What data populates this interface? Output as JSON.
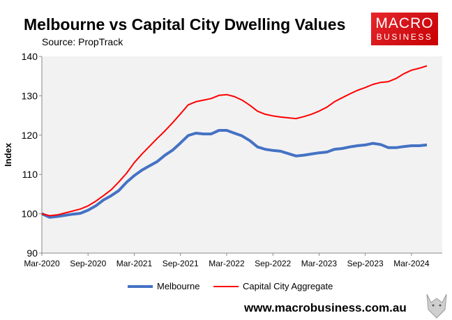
{
  "header": {
    "title": "Melbourne vs Capital City Dwelling Values",
    "subtitle": "Source: PropTrack"
  },
  "logo": {
    "line1": "MACRO",
    "line2": "BUSINESS",
    "color": "#d9161b"
  },
  "footer": {
    "url": "www.macrobusiness.com.au"
  },
  "chart_data": {
    "type": "line",
    "title": "Melbourne vs Capital City Dwelling Values",
    "subtitle": "Source: PropTrack",
    "ylabel": "Index",
    "xlabel": "",
    "ylim": [
      90,
      140
    ],
    "yticks": [
      90,
      100,
      110,
      120,
      130,
      140
    ],
    "xtick_labels": [
      "Mar-2020",
      "Sep-2020",
      "Mar-2021",
      "Sep-2021",
      "Mar-2022",
      "Sep-2022",
      "Mar-2023",
      "Sep-2023",
      "Mar-2024"
    ],
    "grid": false,
    "legend": "bottom",
    "plot_background": "#f2f2f2",
    "x": [
      "2020-03",
      "2020-04",
      "2020-05",
      "2020-06",
      "2020-07",
      "2020-08",
      "2020-09",
      "2020-10",
      "2020-11",
      "2020-12",
      "2021-01",
      "2021-02",
      "2021-03",
      "2021-04",
      "2021-05",
      "2021-06",
      "2021-07",
      "2021-08",
      "2021-09",
      "2021-10",
      "2021-11",
      "2021-12",
      "2022-01",
      "2022-02",
      "2022-03",
      "2022-04",
      "2022-05",
      "2022-06",
      "2022-07",
      "2022-08",
      "2022-09",
      "2022-10",
      "2022-11",
      "2022-12",
      "2023-01",
      "2023-02",
      "2023-03",
      "2023-04",
      "2023-05",
      "2023-06",
      "2023-07",
      "2023-08",
      "2023-09",
      "2023-10",
      "2023-11",
      "2023-12",
      "2024-01",
      "2024-02",
      "2024-03",
      "2024-04",
      "2024-05"
    ],
    "series": [
      {
        "name": "Melbourne",
        "color": "#4472c4",
        "values": [
          100,
          99.1,
          99.3,
          99.6,
          99.9,
          100.1,
          100.9,
          102,
          103.5,
          104.6,
          105.9,
          108,
          109.7,
          111.1,
          112.2,
          113.3,
          114.9,
          116.2,
          118,
          119.9,
          120.5,
          120.3,
          120.3,
          121.2,
          121.2,
          120.5,
          119.8,
          118.6,
          117,
          116.4,
          116.1,
          115.9,
          115.3,
          114.7,
          114.9,
          115.2,
          115.5,
          115.7,
          116.4,
          116.6,
          117,
          117.3,
          117.5,
          117.9,
          117.6,
          116.8,
          116.8,
          117.1,
          117.3,
          117.3,
          117.5
        ]
      },
      {
        "name": "Capital City Aggregate",
        "color": "#ff0000",
        "values": [
          100,
          99.5,
          99.7,
          100.2,
          100.7,
          101.2,
          102,
          103.2,
          104.6,
          106.1,
          108.1,
          110.3,
          113,
          115.2,
          117.2,
          119.2,
          121.1,
          123.2,
          125.4,
          127.7,
          128.5,
          128.9,
          129.3,
          130.1,
          130.3,
          129.8,
          128.9,
          127.6,
          126.1,
          125.3,
          124.9,
          124.6,
          124.4,
          124.2,
          124.7,
          125.3,
          126.1,
          127.1,
          128.5,
          129.5,
          130.5,
          131.4,
          132.1,
          132.9,
          133.4,
          133.6,
          134.4,
          135.6,
          136.5,
          137,
          137.6
        ]
      }
    ]
  }
}
